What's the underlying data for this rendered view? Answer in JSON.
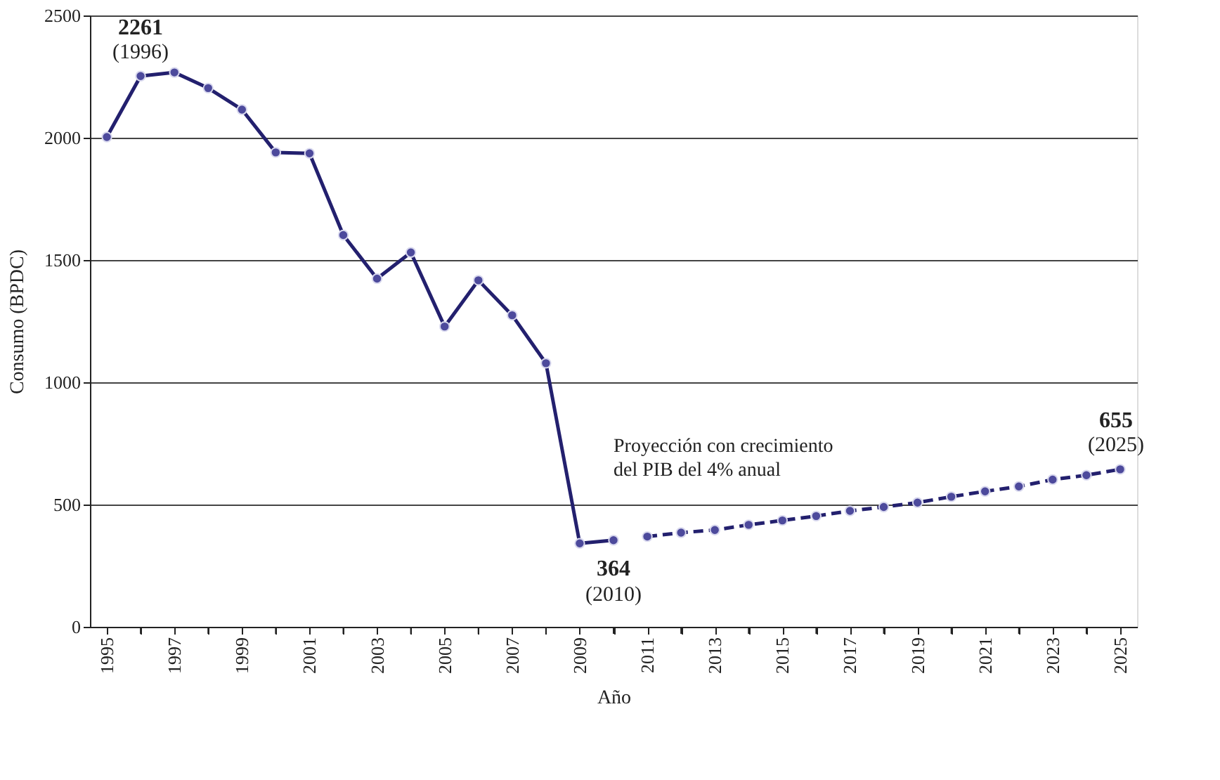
{
  "chart_data": {
    "type": "line",
    "xlabel": "Año",
    "ylabel": "Consumo (BPDC)",
    "xlim": [
      1994.5,
      2025.5
    ],
    "xticks": [
      1995,
      {
        "value": 1996,
        "label": null
      },
      1997,
      {
        "value": 1998,
        "label": null
      },
      1999,
      {
        "value": 2000,
        "label": null
      },
      2001,
      {
        "value": 2002,
        "label": null
      },
      2003,
      {
        "value": 2004,
        "label": null
      },
      2005,
      {
        "value": 2006,
        "label": null
      },
      2007,
      {
        "value": 2008,
        "label": null
      },
      2009,
      {
        "value": 2010,
        "label": null
      },
      2011,
      {
        "value": 2012,
        "label": null
      },
      2013,
      {
        "value": 2014,
        "label": null
      },
      2015,
      {
        "value": 2016,
        "label": null
      },
      2017,
      {
        "value": 2018,
        "label": null
      },
      2019,
      {
        "value": 2020,
        "label": null
      },
      2021,
      {
        "value": 2022,
        "label": null
      },
      2023,
      {
        "value": 2024,
        "label": null
      },
      2025
    ],
    "ylim": [
      0,
      2500
    ],
    "yticks": [
      0,
      500,
      1000,
      1500,
      2000,
      2500
    ],
    "grid": "y",
    "marker": "circle",
    "series": [
      {
        "color": "#23206e",
        "line_style": "solid",
        "x": [
          1995,
          1996,
          1997,
          1998,
          1999,
          2000,
          2001,
          2002,
          2003,
          2004,
          2005,
          2006,
          2007,
          2008,
          2009,
          2010
        ],
        "values": [
          2003,
          2252,
          2267,
          2203,
          2115,
          1940,
          1936,
          1602,
          1424,
          1531,
          1228,
          1417,
          1274,
          1078,
          341,
          354
        ]
      },
      {
        "color": "#23206e",
        "line_style": "dashed",
        "x": [
          2011,
          2012,
          2013,
          2014,
          2015,
          2016,
          2017,
          2018,
          2019,
          2020,
          2021,
          2022,
          2023,
          2024,
          2025
        ],
        "values": [
          369,
          385,
          396,
          417,
          435,
          453,
          474,
          490,
          508,
          532,
          554,
          574,
          602,
          620,
          644
        ]
      }
    ],
    "annotations": [
      {
        "text": "2261\n(1996)",
        "x": 1996,
        "y": 2261
      },
      {
        "text": "364\n(2010)",
        "x": 2010,
        "y": 364
      },
      {
        "text": "655\n(2025)",
        "x": 2025,
        "y": 655
      },
      "Proyección con crecimiento del PIB del 4% anual"
    ]
  }
}
